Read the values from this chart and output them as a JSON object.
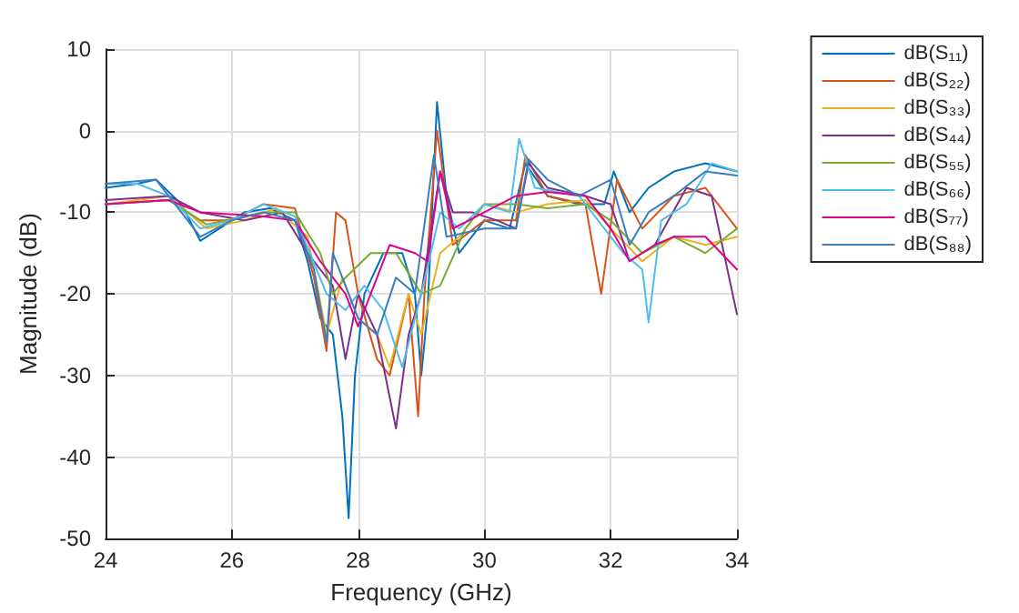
{
  "chart_data": {
    "type": "line",
    "xlabel": "Frequency (GHz)",
    "ylabel": "Magnitude (dB)",
    "xlim": [
      24,
      34
    ],
    "xticks": [
      24,
      26,
      28,
      30,
      32,
      34
    ],
    "ylim": [
      -50,
      10
    ],
    "yticks": [
      -50,
      -40,
      -30,
      -20,
      -10,
      0,
      10
    ],
    "grid": true,
    "legend": "top right",
    "marker": "none",
    "line_style": "solid",
    "series": [
      {
        "name": "dB(S₁₁)",
        "color": "#0072bd",
        "x": [
          24,
          24.5,
          24.8,
          25.2,
          25.5,
          25.8,
          26.2,
          26.6,
          27,
          27.2,
          27.4,
          27.6,
          27.75,
          27.85,
          27.95,
          28.1,
          28.4,
          28.7,
          28.9,
          29,
          29.1,
          29.25,
          29.4,
          29.6,
          30,
          30.4,
          30.65,
          31,
          31.5,
          31.9,
          32.05,
          32.3,
          32.6,
          33,
          33.5,
          34
        ],
        "values": [
          -7,
          -6.5,
          -6,
          -9,
          -13.5,
          -12,
          -10,
          -9.5,
          -11,
          -16,
          -23,
          -25,
          -35,
          -47.5,
          -30,
          -20,
          -15,
          -15,
          -20,
          -30,
          -22,
          3.5,
          -8,
          -15,
          -11,
          -12,
          -4,
          -8,
          -9,
          -9,
          -5,
          -10,
          -7,
          -5,
          -4,
          -5
        ]
      },
      {
        "name": "dB(S₂₂)",
        "color": "#d95319",
        "x": [
          24,
          25,
          25.5,
          26,
          26.5,
          27,
          27.3,
          27.5,
          27.65,
          27.8,
          28,
          28.3,
          28.5,
          28.8,
          28.95,
          29.05,
          29.25,
          29.5,
          30,
          30.5,
          30.65,
          31,
          31.6,
          31.85,
          32.1,
          32.5,
          33,
          33.5,
          34
        ],
        "values": [
          -9,
          -8.5,
          -11,
          -11,
          -9,
          -9.5,
          -18,
          -27,
          -10,
          -11,
          -20,
          -28,
          -30,
          -20,
          -35,
          -20,
          0,
          -14,
          -11,
          -11,
          -3,
          -8,
          -9,
          -20,
          -6,
          -12,
          -8,
          -7,
          -12
        ]
      },
      {
        "name": "dB(S₃₃)",
        "color": "#edb120",
        "x": [
          24,
          25,
          25.6,
          26.2,
          26.7,
          27.2,
          27.5,
          27.75,
          28,
          28.3,
          28.5,
          28.8,
          29,
          29.3,
          29.6,
          30,
          30.5,
          31,
          31.6,
          32,
          32.5,
          33,
          33.5,
          34
        ],
        "values": [
          -9,
          -8,
          -12,
          -11,
          -9.5,
          -13,
          -25,
          -18,
          -23,
          -25,
          -29,
          -20,
          -25,
          -15,
          -13,
          -9,
          -10,
          -9,
          -8.5,
          -12,
          -16,
          -13,
          -14,
          -13
        ]
      },
      {
        "name": "dB(S₄₄)",
        "color": "#7e2f8e",
        "x": [
          24,
          25,
          25.5,
          26.2,
          26.8,
          27.2,
          27.6,
          27.8,
          28,
          28.3,
          28.6,
          28.8,
          29,
          29.3,
          29.5,
          29.8,
          30.2,
          30.5,
          30.7,
          31,
          31.6,
          32,
          32.3,
          32.7,
          33.2,
          33.6,
          34
        ],
        "values": [
          -8.5,
          -8,
          -10,
          -11,
          -10,
          -15,
          -19,
          -28,
          -20,
          -25,
          -36.5,
          -25,
          -20,
          -5,
          -10,
          -10,
          -11,
          -12,
          -4,
          -7,
          -8,
          -9,
          -16,
          -14,
          -7,
          -8,
          -22.5
        ]
      },
      {
        "name": "dB(S₅₅)",
        "color": "#77ac30",
        "x": [
          24,
          25,
          25.6,
          26.5,
          27,
          27.4,
          27.6,
          27.8,
          28.2,
          28.6,
          29,
          29.3,
          29.7,
          30,
          30.5,
          31,
          31.6,
          32,
          32.5,
          33,
          33.5,
          34
        ],
        "values": [
          -9,
          -8.5,
          -11.5,
          -10,
          -10,
          -15,
          -20,
          -18,
          -15,
          -15,
          -20,
          -19,
          -12,
          -9,
          -9,
          -9.5,
          -9,
          -11,
          -15,
          -13,
          -15,
          -12
        ]
      },
      {
        "name": "dB(S₆₆)",
        "color": "#4dbeee",
        "x": [
          24,
          24.5,
          25,
          25.5,
          26,
          26.5,
          27,
          27.5,
          27.8,
          28.1,
          28.4,
          28.7,
          29,
          29.3,
          29.6,
          30,
          30.4,
          30.55,
          30.8,
          31.5,
          32,
          32.2,
          32.5,
          32.6,
          32.8,
          33.2,
          33.6,
          34
        ],
        "values": [
          -6.5,
          -6.5,
          -8,
          -12,
          -11,
          -9,
          -10.5,
          -20,
          -22,
          -19,
          -22,
          -29,
          -20,
          -10,
          -12,
          -9,
          -10,
          -1,
          -7,
          -8,
          -13,
          -15,
          -17,
          -23.5,
          -11,
          -9,
          -4,
          -5
        ]
      },
      {
        "name": "dB(S₇₇)",
        "color": "#e0008c",
        "x": [
          24,
          25,
          25.5,
          26.5,
          27,
          27.4,
          27.8,
          28,
          28.2,
          28.5,
          28.9,
          29.1,
          29.3,
          29.5,
          30,
          30.5,
          31,
          31.6,
          32,
          32.3,
          32.7,
          33,
          33.5,
          34
        ],
        "values": [
          -9,
          -8.5,
          -10,
          -10.5,
          -11,
          -16,
          -20,
          -24,
          -20,
          -14,
          -15,
          -16,
          -5,
          -12,
          -10,
          -8,
          -7.5,
          -8,
          -12,
          -16,
          -14,
          -13,
          -13,
          -17
        ]
      },
      {
        "name": "dB(S₈₈)",
        "color": "#3a7dc0",
        "x": [
          24,
          24.8,
          25.2,
          25.5,
          26,
          26.5,
          27,
          27.3,
          27.5,
          27.6,
          28,
          28.3,
          28.6,
          28.9,
          29.2,
          29.4,
          30,
          30.5,
          30.7,
          31,
          31.5,
          32,
          32.3,
          32.6,
          33,
          33.5,
          34
        ],
        "values": [
          -6.5,
          -6,
          -10,
          -13,
          -11,
          -10,
          -11,
          -17,
          -26,
          -15,
          -23,
          -25,
          -18,
          -20,
          -3,
          -13,
          -12,
          -12,
          -3.5,
          -6,
          -8,
          -6,
          -14,
          -10,
          -8,
          -5,
          -5.5
        ]
      }
    ]
  }
}
